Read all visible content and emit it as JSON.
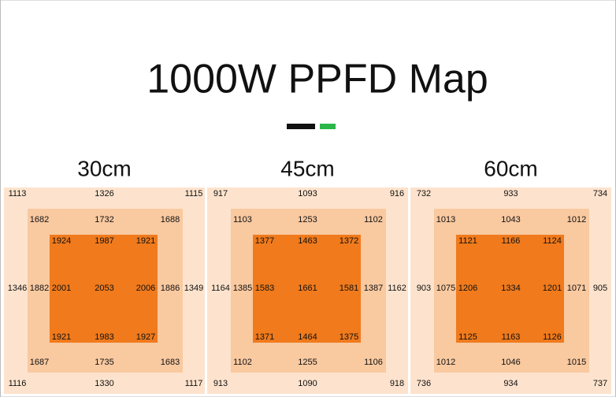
{
  "title": "1000W PPFD Map",
  "maps": [
    {
      "height": "30cm",
      "outer": [
        1113,
        1326,
        1115,
        1346,
        1349,
        1116,
        1330,
        1117
      ],
      "middle": [
        1682,
        1732,
        1688,
        1882,
        1886,
        1687,
        1735,
        1683
      ],
      "inner": [
        1924,
        1987,
        1921,
        2001,
        2053,
        2006,
        1921,
        1983,
        1927
      ]
    },
    {
      "height": "45cm",
      "outer": [
        917,
        1093,
        916,
        1164,
        1162,
        913,
        1090,
        918
      ],
      "middle": [
        1103,
        1253,
        1102,
        1385,
        1387,
        1102,
        1255,
        1106
      ],
      "inner": [
        1377,
        1463,
        1372,
        1583,
        1661,
        1581,
        1371,
        1464,
        1375
      ]
    },
    {
      "height": "60cm",
      "outer": [
        732,
        933,
        734,
        903,
        905,
        736,
        934,
        737
      ],
      "middle": [
        1013,
        1043,
        1012,
        1075,
        1071,
        1012,
        1046,
        1015
      ],
      "inner": [
        1121,
        1166,
        1124,
        1206,
        1334,
        1201,
        1125,
        1163,
        1126
      ]
    }
  ]
}
